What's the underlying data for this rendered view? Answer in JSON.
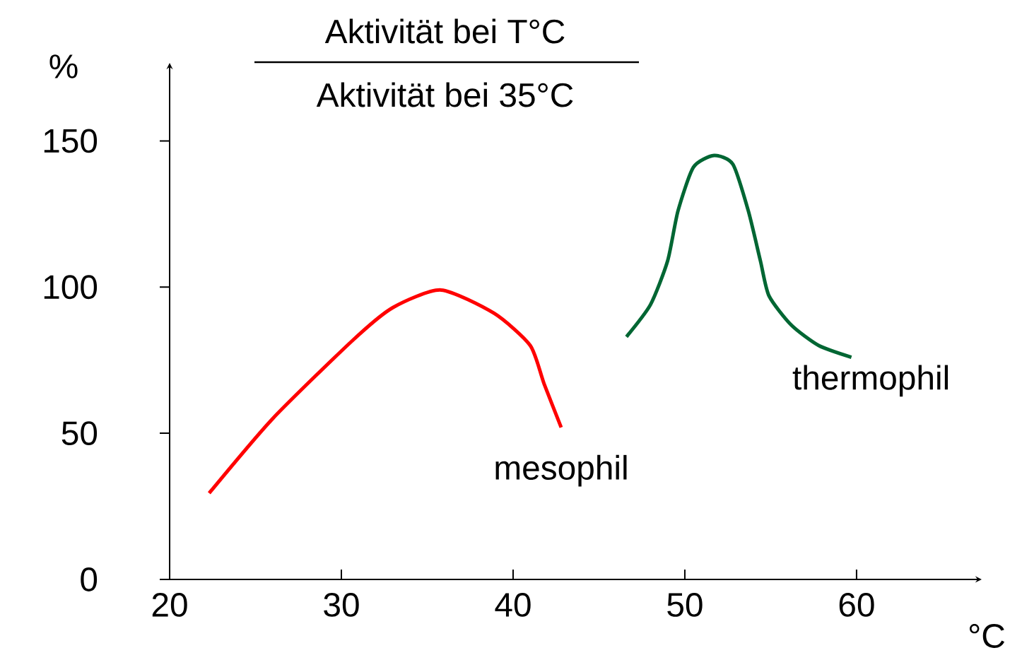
{
  "chart_data": {
    "type": "line",
    "xlabel": "°C",
    "ylabel": "%",
    "annotations": [
      "Aktivität bei T°C",
      "Aktivität bei 35°C"
    ],
    "xlim": [
      20,
      67
    ],
    "ylim": [
      0,
      175
    ],
    "xticks": [
      20,
      30,
      40,
      50,
      60
    ],
    "yticks": [
      0,
      50,
      100,
      150
    ],
    "series": [
      {
        "name": "mesophil",
        "color": "#ff0000",
        "x": [
          22.3,
          26,
          30.7,
          33,
          35.8,
          38.9,
          41,
          41.8,
          42.8
        ],
        "values": [
          29.5,
          55,
          82,
          93,
          99,
          91,
          80,
          67,
          52
        ]
      },
      {
        "name": "thermophil",
        "color": "#006633",
        "x": [
          46.6,
          48,
          49,
          49.6,
          50.5,
          51.7,
          52.8,
          53.7,
          54.4,
          54.9,
          56.2,
          57.8,
          59.7
        ],
        "values": [
          83,
          94,
          109,
          126,
          141,
          145,
          142,
          126,
          109,
          97,
          87,
          80,
          76
        ]
      }
    ]
  }
}
